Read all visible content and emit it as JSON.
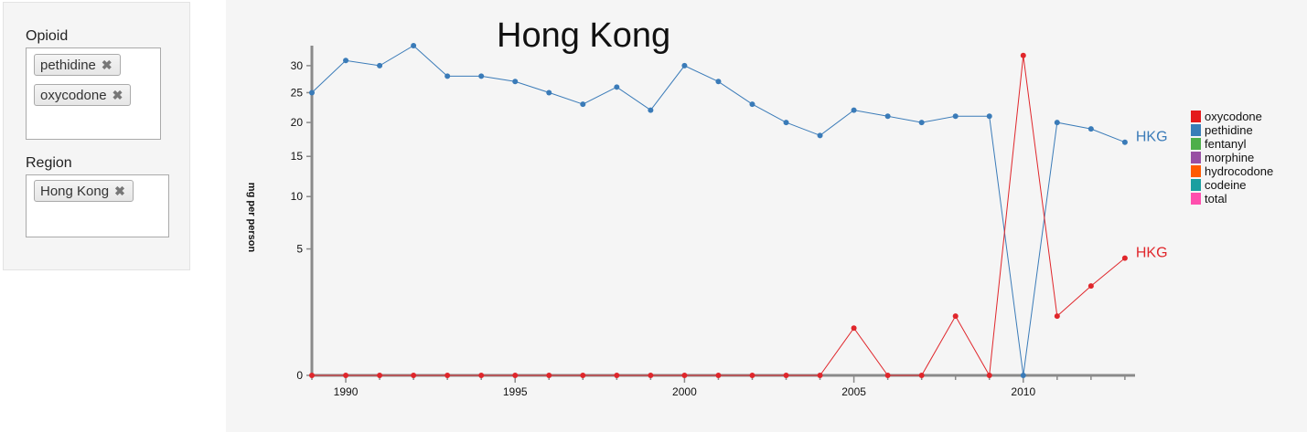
{
  "filters": {
    "opioid_label": "Opioid",
    "opioid_tags": [
      "pethidine",
      "oxycodone"
    ],
    "region_label": "Region",
    "region_tags": [
      "Hong Kong"
    ],
    "remove_glyph": "✖"
  },
  "chart_data": {
    "type": "line",
    "title": "Hong Kong",
    "xlabel": "",
    "ylabel": "mg per person",
    "x": [
      1989,
      1990,
      1991,
      1992,
      1993,
      1994,
      1995,
      1996,
      1997,
      1998,
      1999,
      2000,
      2001,
      2002,
      2003,
      2004,
      2005,
      2006,
      2007,
      2008,
      2009,
      2010,
      2011,
      2012,
      2013
    ],
    "xticks": [
      1990,
      1995,
      2000,
      2005,
      2010
    ],
    "yticks": [
      0,
      5,
      10,
      15,
      20,
      25,
      30
    ],
    "yscale": "sqrt",
    "ylim": [
      0,
      34
    ],
    "xlim": [
      1989,
      2013.3
    ],
    "series": [
      {
        "name": "pethidine",
        "color": "#3a7bb8",
        "end_label": "HKG",
        "values": [
          25,
          31,
          30,
          34,
          28,
          28,
          27,
          25,
          23,
          26,
          22,
          30,
          27,
          23,
          20,
          18,
          22,
          21,
          20,
          21,
          21,
          0,
          20,
          19,
          17
        ]
      },
      {
        "name": "oxycodone",
        "color": "#e0262b",
        "end_label": "HKG",
        "values": [
          0,
          0,
          0,
          0,
          0,
          0,
          0,
          0,
          0,
          0,
          0,
          0,
          0,
          0,
          0,
          0,
          0.7,
          0,
          0,
          1.1,
          0,
          32,
          1.1,
          2.5,
          4.3
        ]
      }
    ],
    "legend": {
      "position": "right",
      "items": [
        {
          "label": "oxycodone",
          "color": "#e41a1c"
        },
        {
          "label": "pethidine",
          "color": "#377eb8"
        },
        {
          "label": "fentanyl",
          "color": "#4daf4a"
        },
        {
          "label": "morphine",
          "color": "#984ea3"
        },
        {
          "label": "hydrocodone",
          "color": "#ff5a00"
        },
        {
          "label": "codeine",
          "color": "#1a9fa0"
        },
        {
          "label": "total",
          "color": "#ff4fae"
        }
      ]
    },
    "grid": false
  }
}
